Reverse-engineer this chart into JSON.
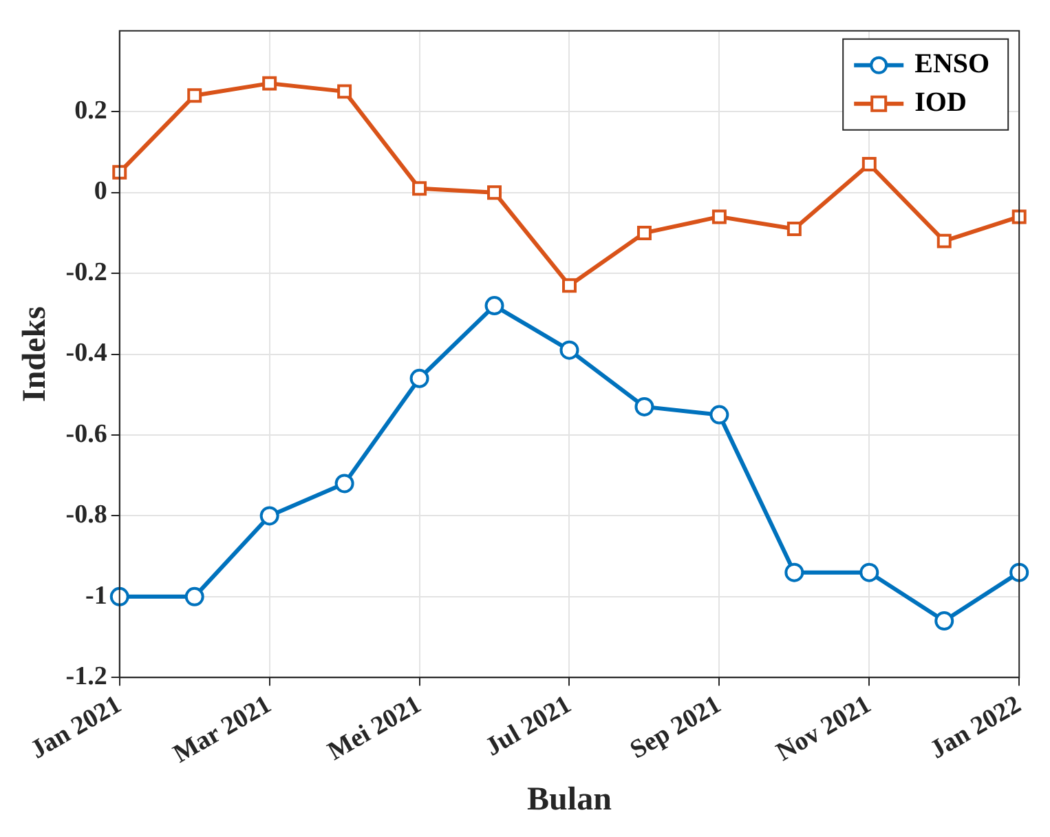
{
  "chart_data": {
    "type": "line",
    "xlabel": "Bulan",
    "ylabel": "Indeks",
    "categories": [
      "Jan 2021",
      null,
      "Mar 2021",
      null,
      "Mei 2021",
      null,
      "Jul 2021",
      null,
      "Sep 2021",
      null,
      "Nov 2021",
      null,
      "Jan 2022"
    ],
    "series": [
      {
        "name": "ENSO",
        "color": "#0072bd",
        "marker": "circle",
        "values": [
          -1.0,
          -1.0,
          -0.8,
          -0.72,
          -0.46,
          -0.28,
          -0.39,
          -0.53,
          -0.55,
          -0.94,
          -0.94,
          -1.06,
          -0.94
        ]
      },
      {
        "name": "IOD",
        "color": "#d95319",
        "marker": "square",
        "values": [
          0.05,
          0.24,
          0.27,
          0.25,
          0.01,
          0.0,
          -0.23,
          -0.1,
          -0.06,
          -0.09,
          0.07,
          -0.12,
          -0.06
        ]
      }
    ],
    "ylim": [
      -1.2,
      0.4
    ],
    "yticks": [
      -1.2,
      -1,
      -0.8,
      -0.6,
      -0.4,
      -0.2,
      0,
      0.2
    ],
    "grid": true,
    "legend": "top right",
    "line_style": "solid"
  }
}
